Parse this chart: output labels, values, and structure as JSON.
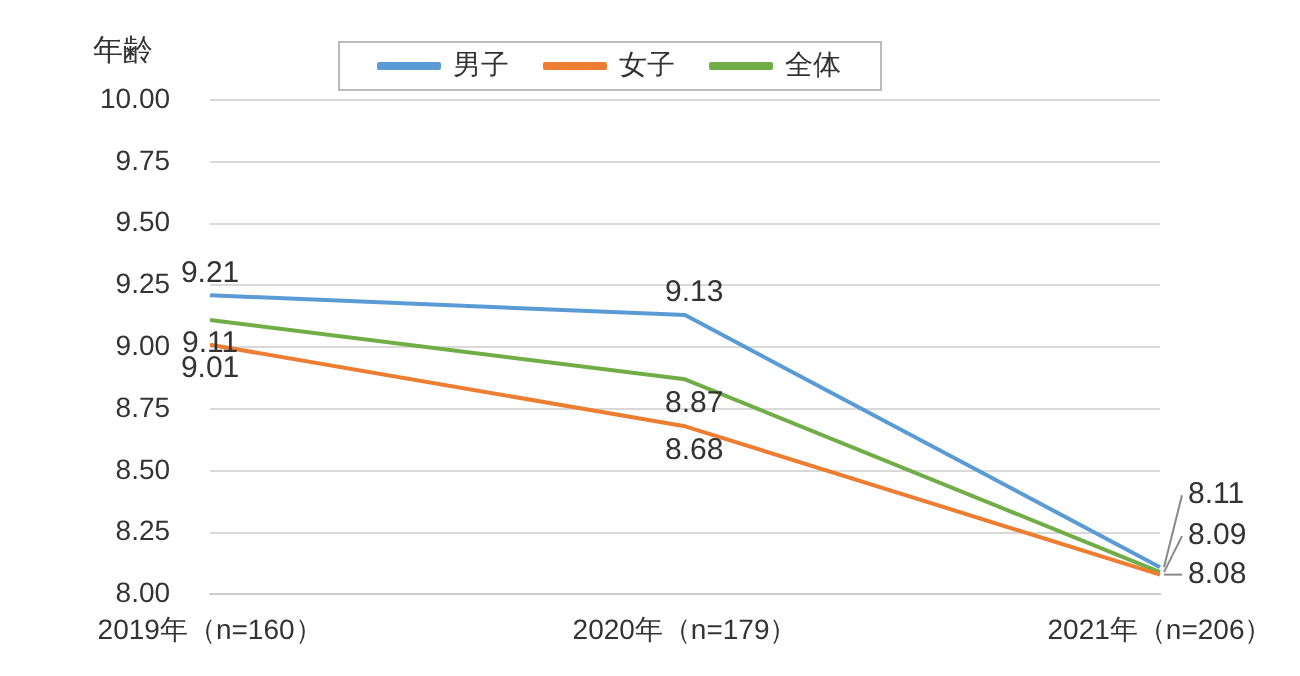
{
  "chart_data": {
    "type": "line",
    "ylabel": "年齢",
    "categories": [
      "2019年（n=160）",
      "2020年（n=179）",
      "2021年（n=206）"
    ],
    "series": [
      {
        "name": "男子",
        "color": "#5b9bd5",
        "values": [
          9.21,
          9.13,
          8.11
        ]
      },
      {
        "name": "女子",
        "color": "#ed7d31",
        "values": [
          9.01,
          8.68,
          8.08
        ]
      },
      {
        "name": "全体",
        "color": "#70ad47",
        "values": [
          9.11,
          8.87,
          8.09
        ]
      }
    ],
    "ylim": [
      8,
      10
    ],
    "yticks": [
      {
        "value": 8,
        "label": "8.00"
      },
      {
        "value": 8.25,
        "label": "8.25"
      },
      {
        "value": 8.5,
        "label": "8.50"
      },
      {
        "value": 8.75,
        "label": "8.75"
      },
      {
        "value": 9,
        "label": "9.00"
      },
      {
        "value": 9.25,
        "label": "9.25"
      },
      {
        "value": 9.5,
        "label": "9.50"
      },
      {
        "value": 9.75,
        "label": "9.75"
      },
      {
        "value": 10,
        "label": "10.00"
      }
    ],
    "grid": "y",
    "legend": "top",
    "marker": "none",
    "line_style": "solid",
    "data_labels": true
  }
}
